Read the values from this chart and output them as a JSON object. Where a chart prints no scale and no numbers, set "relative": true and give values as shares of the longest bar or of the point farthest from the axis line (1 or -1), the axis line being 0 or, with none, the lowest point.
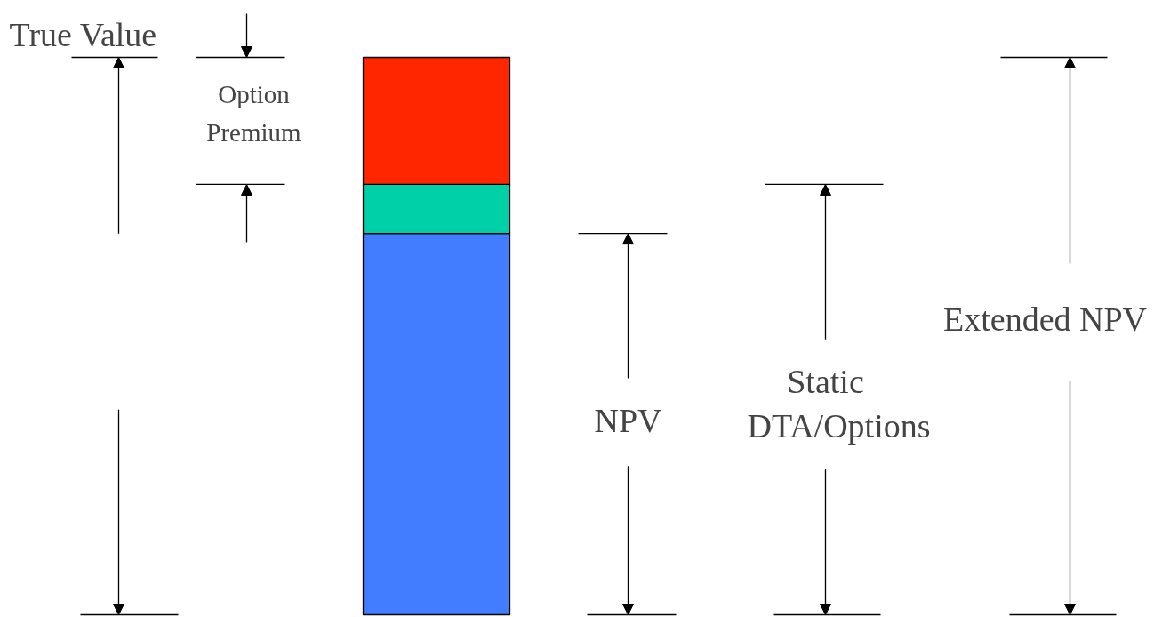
{
  "chart_data": {
    "type": "bar",
    "stacked": true,
    "relative": true,
    "categories": [
      null
    ],
    "series": [
      {
        "color": "#437dff",
        "values": [
          0.684
        ]
      },
      {
        "color": "#00d0a8",
        "values": [
          0.088
        ]
      },
      {
        "color": "#ff2600",
        "values": [
          0.228
        ]
      }
    ],
    "annotations": [
      "True Value",
      "Option Premium",
      "NPV",
      "Static DTA/Options",
      "Extended NPV"
    ]
  }
}
